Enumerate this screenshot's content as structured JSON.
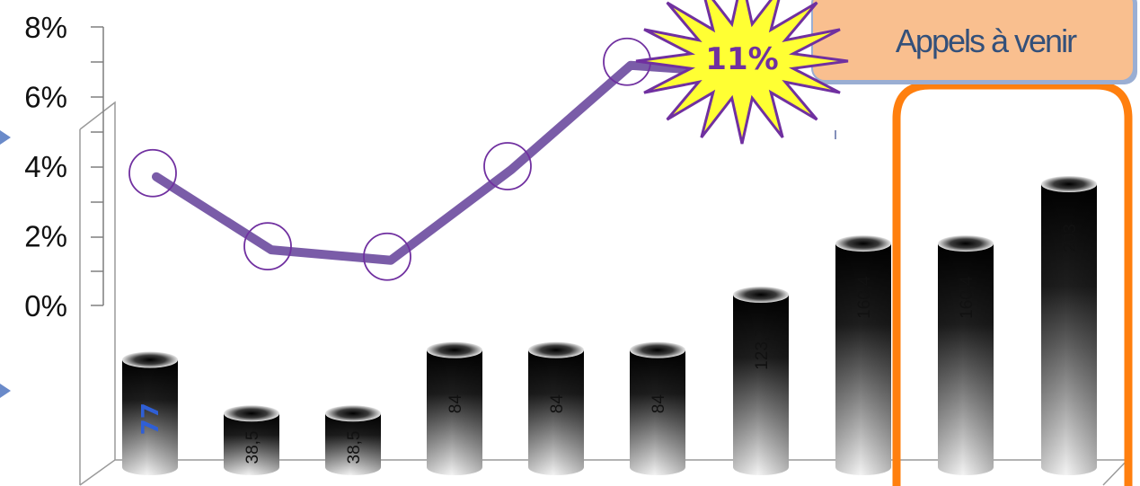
{
  "chart_data": {
    "type": "bar",
    "categories": [
      "",
      "",
      "",
      "",
      "",
      "",
      "",
      "",
      "",
      ""
    ],
    "bar_series": {
      "labels": [
        "77",
        "38,5",
        "38,5",
        "84",
        "84",
        "84",
        "123,7",
        "160,4",
        "160,4",
        "203"
      ],
      "values": [
        77,
        38.5,
        38.5,
        84,
        84,
        84,
        123.7,
        160.4,
        160.4,
        203
      ]
    },
    "line_series": {
      "values": [
        3.8,
        1.7,
        1.4,
        4.0,
        7.0
      ]
    },
    "y_axis": {
      "ticks": [
        "8%",
        "6%",
        "4%",
        "2%",
        "0%"
      ],
      "tick_values": [
        8,
        6,
        4,
        2,
        0
      ],
      "range": [
        0,
        8
      ]
    },
    "annotations": {
      "burst": "11%",
      "callout": "Appels à venir",
      "highlight_bars": [
        8,
        9
      ]
    },
    "colors": {
      "line": "#7a5ca8",
      "marker": "#7030a0",
      "burst_fill": "#ffff33",
      "burst_stroke": "#7030a0",
      "callout_fill": "#f9bf8f",
      "highlight": "#ff7f0e",
      "accent_label": "#2f5fd6"
    },
    "grid": false
  }
}
